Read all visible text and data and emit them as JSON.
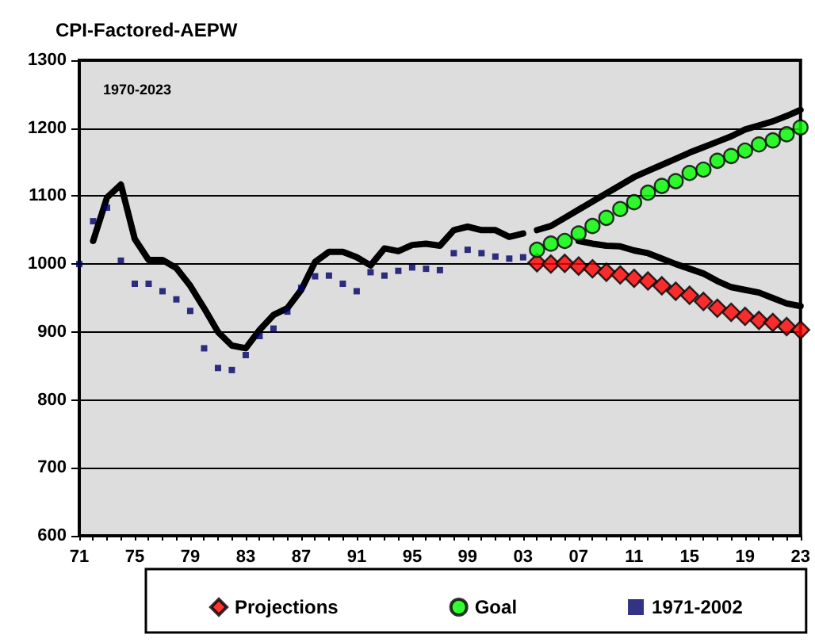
{
  "chart_data": {
    "type": "scatter",
    "title": "CPI-Factored-AEPW",
    "annotations": [
      "1970-2023"
    ],
    "categories": [
      "71",
      null,
      null,
      null,
      "75",
      null,
      null,
      null,
      "79",
      null,
      null,
      null,
      "83",
      null,
      null,
      null,
      "87",
      null,
      null,
      null,
      "91",
      null,
      null,
      null,
      "95",
      null,
      null,
      null,
      "99",
      null,
      null,
      null,
      "03",
      null,
      null,
      null,
      "07",
      null,
      null,
      null,
      "11",
      null,
      null,
      null,
      "15",
      null,
      null,
      null,
      "19",
      null,
      null,
      null,
      "23"
    ],
    "ylim": [
      600,
      1300
    ],
    "yticks": [
      600,
      700,
      800,
      900,
      1000,
      1100,
      1200,
      1300
    ],
    "grid": "y",
    "legend": "bottom",
    "series": [
      {
        "type": "line",
        "color": "#000000",
        "marker": "none",
        "values": [
          null,
          1034,
          1098,
          1117,
          1037,
          1006,
          1006,
          994,
          968,
          935,
          900,
          880,
          876,
          903,
          925,
          935,
          962,
          1003,
          1018,
          1018,
          1010,
          998,
          1023,
          1019,
          1028,
          1030,
          1027,
          1050,
          1055,
          1050,
          1050,
          1040,
          1045,
          null,
          null,
          null,
          null,
          null,
          null,
          null,
          null,
          null,
          null,
          null,
          null,
          null,
          null,
          null,
          null,
          null,
          null,
          null,
          null
        ]
      },
      {
        "type": "line",
        "color": "#000000",
        "marker": "none",
        "values": [
          null,
          null,
          null,
          null,
          null,
          null,
          null,
          null,
          null,
          null,
          null,
          null,
          null,
          null,
          null,
          null,
          null,
          null,
          null,
          null,
          null,
          null,
          null,
          null,
          null,
          null,
          null,
          null,
          null,
          null,
          null,
          null,
          null,
          1050,
          1056,
          1068,
          1080,
          1092,
          1104,
          1116,
          1128,
          1137,
          1146,
          1155,
          1164,
          1172,
          1180,
          1188,
          1198,
          1204,
          1210,
          1218,
          1227
        ]
      },
      {
        "type": "line",
        "color": "#000000",
        "marker": "none",
        "values": [
          null,
          null,
          null,
          null,
          null,
          null,
          null,
          null,
          null,
          null,
          null,
          null,
          null,
          null,
          null,
          null,
          null,
          null,
          null,
          null,
          null,
          null,
          null,
          null,
          null,
          null,
          null,
          null,
          null,
          null,
          null,
          null,
          null,
          null,
          null,
          null,
          1034,
          1030,
          1027,
          1026,
          1020,
          1016,
          1008,
          1000,
          993,
          986,
          975,
          966,
          962,
          958,
          950,
          942,
          938
        ]
      },
      {
        "name": "Projections",
        "color": "#ff0000",
        "marker": "diamond",
        "values": [
          null,
          null,
          null,
          null,
          null,
          null,
          null,
          null,
          null,
          null,
          null,
          null,
          null,
          null,
          null,
          null,
          null,
          null,
          null,
          null,
          null,
          null,
          null,
          null,
          null,
          null,
          null,
          null,
          null,
          null,
          null,
          null,
          null,
          1002,
          1000,
          1001,
          997,
          993,
          988,
          984,
          979,
          975,
          968,
          960,
          954,
          945,
          935,
          929,
          923,
          917,
          914,
          908,
          903
        ]
      },
      {
        "name": "Goal",
        "color": "#00ff00",
        "marker": "circle",
        "values": [
          null,
          null,
          null,
          null,
          null,
          null,
          null,
          null,
          null,
          null,
          null,
          null,
          null,
          null,
          null,
          null,
          null,
          null,
          null,
          null,
          null,
          null,
          null,
          null,
          null,
          null,
          null,
          null,
          null,
          null,
          null,
          null,
          null,
          1021,
          1030,
          1034,
          1045,
          1056,
          1068,
          1081,
          1091,
          1105,
          1115,
          1122,
          1134,
          1139,
          1152,
          1159,
          1167,
          1176,
          1182,
          1191,
          1201
        ]
      },
      {
        "name": "1971-2002",
        "color": "#000066",
        "marker": "square",
        "values": [
          1000,
          1063,
          1083,
          1005,
          971,
          971,
          960,
          948,
          931,
          876,
          847,
          844,
          866,
          894,
          905,
          930,
          965,
          982,
          983,
          971,
          960,
          988,
          983,
          990,
          995,
          993,
          991,
          1016,
          1021,
          1016,
          1011,
          1008,
          1010,
          null,
          null,
          null,
          null,
          null,
          null,
          null,
          null,
          null,
          null,
          null,
          null,
          null,
          null,
          null,
          null,
          null,
          null,
          null,
          null
        ]
      }
    ]
  }
}
